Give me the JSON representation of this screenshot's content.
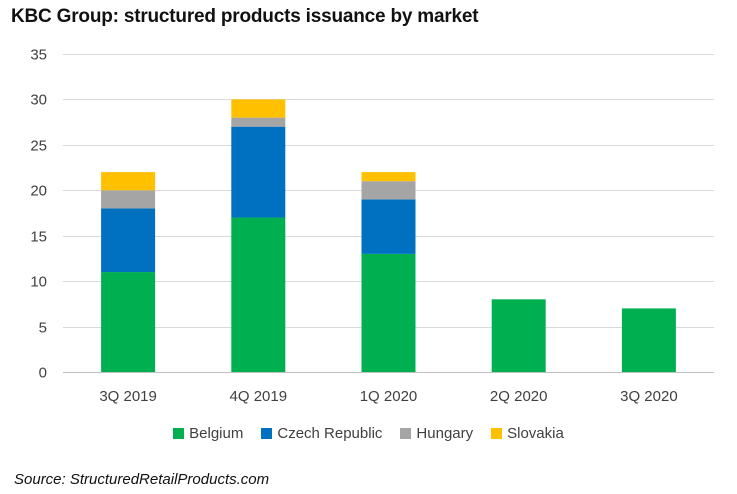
{
  "chart_data": {
    "type": "bar",
    "stacked": true,
    "title": "KBC Group: structured products issuance by market",
    "xlabel": "",
    "ylabel": "",
    "categories": [
      "3Q 2019",
      "4Q 2019",
      "1Q 2020",
      "2Q 2020",
      "3Q 2020"
    ],
    "series": [
      {
        "name": "Belgium",
        "color": "#00b050",
        "values": [
          11,
          17,
          13,
          8,
          7
        ]
      },
      {
        "name": "Czech Republic",
        "color": "#0070c0",
        "values": [
          7,
          10,
          6,
          0,
          0
        ]
      },
      {
        "name": "Hungary",
        "color": "#a5a5a5",
        "values": [
          2,
          1,
          2,
          0,
          0
        ]
      },
      {
        "name": "Slovakia",
        "color": "#ffc000",
        "values": [
          2,
          2,
          1,
          0,
          0
        ]
      }
    ],
    "ylim": [
      0,
      35
    ],
    "yticks": [
      0,
      5,
      10,
      15,
      20,
      25,
      30,
      35
    ],
    "grid": true,
    "legend_position": "bottom"
  },
  "source": "Source: StructuredRetailProducts.com"
}
